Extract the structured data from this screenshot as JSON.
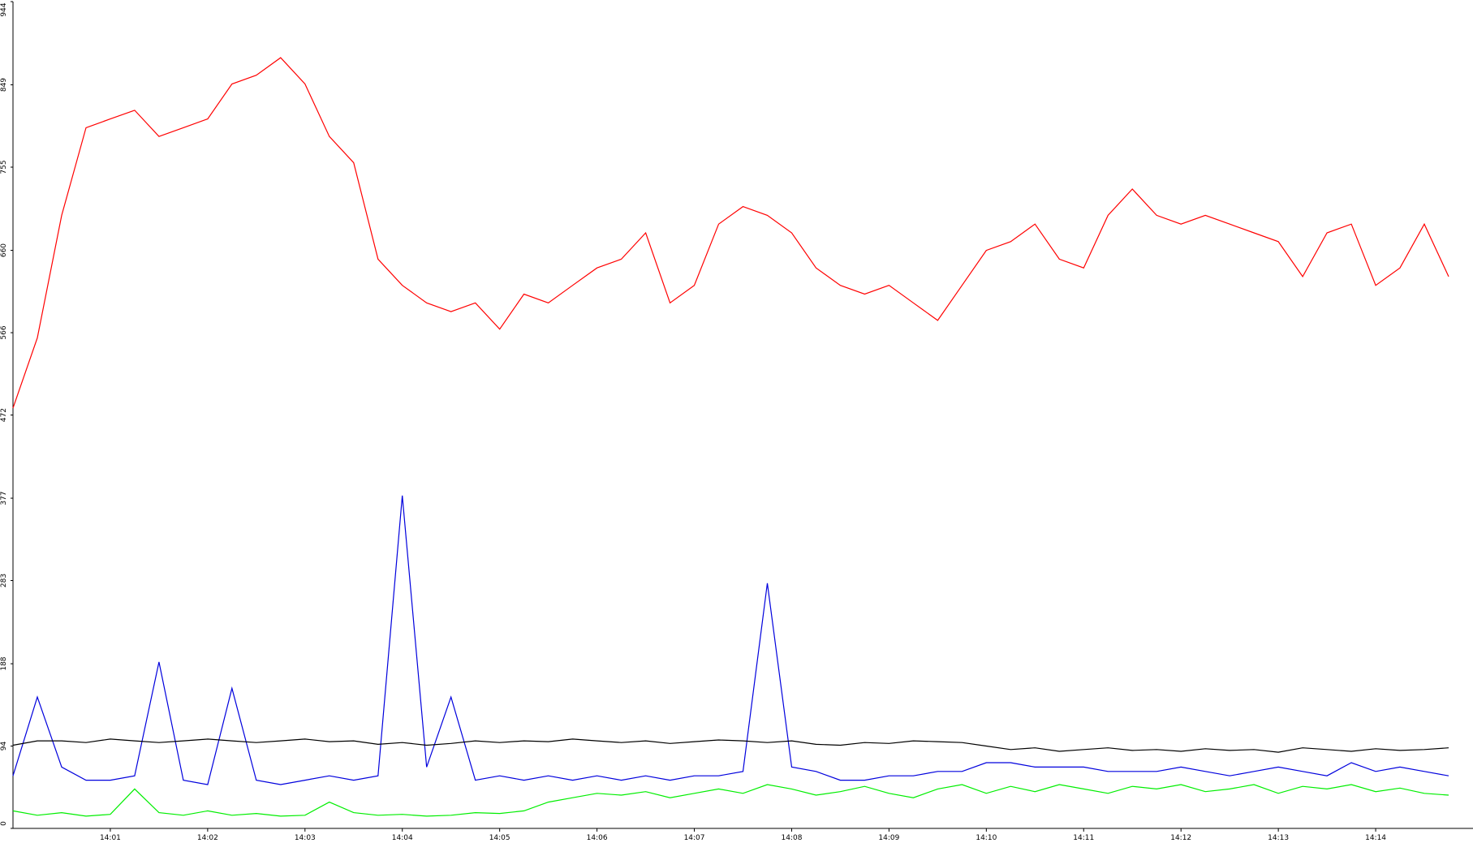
{
  "chart_data": {
    "type": "line",
    "x": [
      "14:00:00",
      "14:00:15",
      "14:00:30",
      "14:00:45",
      "14:01:00",
      "14:01:15",
      "14:01:30",
      "14:01:45",
      "14:02:00",
      "14:02:15",
      "14:02:30",
      "14:02:45",
      "14:03:00",
      "14:03:15",
      "14:03:30",
      "14:03:45",
      "14:04:00",
      "14:04:15",
      "14:04:30",
      "14:04:45",
      "14:05:00",
      "14:05:15",
      "14:05:30",
      "14:05:45",
      "14:06:00",
      "14:06:15",
      "14:06:30",
      "14:06:45",
      "14:07:00",
      "14:07:15",
      "14:07:30",
      "14:07:45",
      "14:08:00",
      "14:08:15",
      "14:08:30",
      "14:08:45",
      "14:09:00",
      "14:09:15",
      "14:09:30",
      "14:09:45",
      "14:10:00",
      "14:10:15",
      "14:10:30",
      "14:10:45",
      "14:11:00",
      "14:11:15",
      "14:11:30",
      "14:11:45",
      "14:12:00",
      "14:12:15",
      "14:12:30",
      "14:12:45",
      "14:13:00",
      "14:13:15",
      "14:13:30",
      "14:13:45",
      "14:14:00",
      "14:14:15",
      "14:14:30",
      "14:14:45"
    ],
    "series": [
      {
        "color": "#ff0000",
        "values": [
          480,
          560,
          700,
          800,
          810,
          820,
          790,
          800,
          810,
          850,
          860,
          880,
          850,
          790,
          760,
          650,
          620,
          600,
          590,
          600,
          570,
          610,
          600,
          620,
          640,
          650,
          680,
          600,
          620,
          690,
          710,
          700,
          680,
          640,
          620,
          610,
          620,
          600,
          580,
          620,
          660,
          670,
          690,
          650,
          640,
          700,
          730,
          700,
          690,
          700,
          690,
          680,
          670,
          630,
          680,
          690,
          620,
          640,
          690,
          630
        ]
      },
      {
        "color": "#0000dd",
        "values": [
          60,
          150,
          70,
          55,
          55,
          60,
          190,
          55,
          50,
          160,
          55,
          50,
          55,
          60,
          55,
          60,
          380,
          70,
          150,
          55,
          60,
          55,
          60,
          55,
          60,
          55,
          60,
          55,
          60,
          60,
          65,
          280,
          70,
          65,
          55,
          55,
          60,
          60,
          65,
          65,
          75,
          75,
          70,
          70,
          70,
          65,
          65,
          65,
          70,
          65,
          60,
          65,
          70,
          65,
          60,
          75,
          65,
          70,
          65,
          60
        ]
      },
      {
        "color": "#000000",
        "values": [
          95,
          100,
          100,
          98,
          102,
          100,
          98,
          100,
          102,
          100,
          98,
          100,
          102,
          99,
          100,
          96,
          98,
          95,
          97,
          100,
          98,
          100,
          99,
          102,
          100,
          98,
          100,
          97,
          99,
          101,
          100,
          98,
          100,
          96,
          95,
          98,
          97,
          100,
          99,
          98,
          94,
          90,
          92,
          88,
          90,
          92,
          89,
          90,
          88,
          91,
          89,
          90,
          87,
          92,
          90,
          88,
          91,
          89,
          90,
          92
        ]
      },
      {
        "color": "#00ee00",
        "values": [
          20,
          15,
          18,
          14,
          16,
          45,
          18,
          15,
          20,
          15,
          17,
          14,
          15,
          30,
          18,
          15,
          16,
          14,
          15,
          18,
          17,
          20,
          30,
          35,
          40,
          38,
          42,
          35,
          40,
          45,
          40,
          50,
          45,
          38,
          42,
          48,
          40,
          35,
          45,
          50,
          40,
          48,
          42,
          50,
          45,
          40,
          48,
          45,
          50,
          42,
          45,
          50,
          40,
          48,
          45,
          50,
          42,
          46,
          40,
          38
        ]
      }
    ],
    "xlim": [
      "14:00:00",
      "14:15:00"
    ],
    "xticks": [
      "14:01",
      "14:02",
      "14:03",
      "14:04",
      "14:05",
      "14:06",
      "14:07",
      "14:08",
      "14:09",
      "14:10",
      "14:11",
      "14:12",
      "14:13",
      "14:14"
    ],
    "ylim": [
      0,
      944
    ],
    "yticks": [
      0,
      94,
      188,
      283,
      377,
      472,
      566,
      660,
      755,
      849,
      944
    ]
  }
}
